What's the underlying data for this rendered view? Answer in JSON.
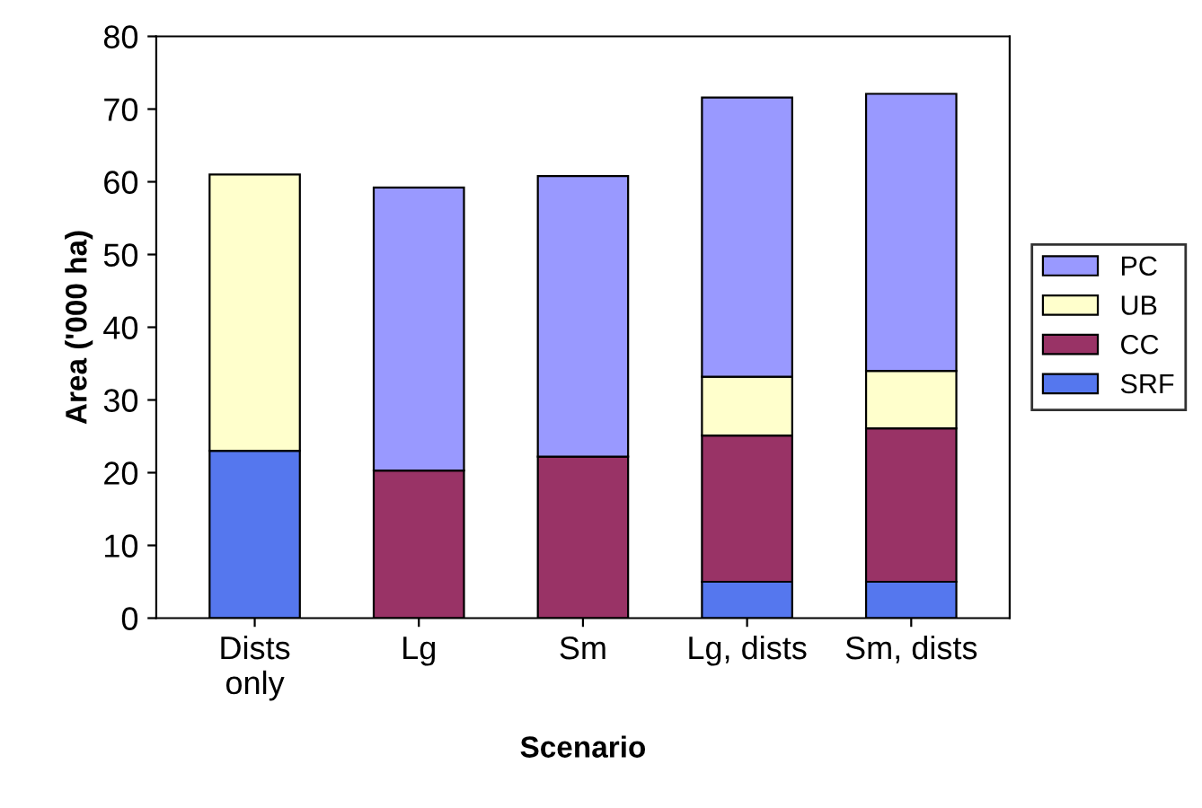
{
  "chart_data": {
    "type": "bar",
    "stacked": true,
    "xlabel": "Scenario",
    "ylabel": "Area ('000 ha)",
    "categories": [
      "Dists\nonly",
      "Lg",
      "Sm",
      "Lg, dists",
      "Sm, dists"
    ],
    "series": [
      {
        "name": "SRF",
        "color": "#5577ee",
        "values": [
          23,
          null,
          null,
          5,
          5
        ]
      },
      {
        "name": "CC",
        "color": "#993366",
        "values": [
          null,
          20.3,
          22.2,
          20.1,
          21.1
        ]
      },
      {
        "name": "UB",
        "color": "#ffffcc",
        "values": [
          38,
          null,
          null,
          8.1,
          7.9
        ]
      },
      {
        "name": "PC",
        "color": "#9999ff",
        "values": [
          null,
          38.9,
          38.6,
          38.4,
          38.1
        ]
      }
    ],
    "ylim": [
      0,
      80
    ],
    "yticks": [
      0,
      10,
      20,
      30,
      40,
      50,
      60,
      70,
      80
    ],
    "grid": false,
    "legend": "right"
  }
}
